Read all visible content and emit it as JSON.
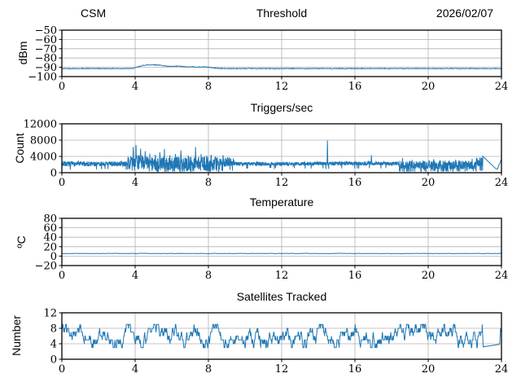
{
  "figure": {
    "background": "#ffffff",
    "line_color": "#1f77b4",
    "grid_color": "#b0b0b0",
    "axis_color": "#000000"
  },
  "chart_data": [
    {
      "type": "line",
      "left_title": "CSM",
      "title": "Threshold",
      "right_title": "2026/02/07",
      "ylabel": "dBm",
      "xlim": [
        0,
        24
      ],
      "ylim": [
        -100,
        -50
      ],
      "xticks": [
        0,
        4,
        8,
        12,
        16,
        20,
        24
      ],
      "yticks": [
        -100,
        -90,
        -80,
        -70,
        -60,
        -50
      ],
      "grid": true,
      "series": [
        {
          "name": "threshold_dbm",
          "mode": "keypoints",
          "seed": 42,
          "step": 0.02,
          "noise": 0.35,
          "points": [
            [
              0,
              -91.4
            ],
            [
              3.8,
              -91.4
            ],
            [
              4.0,
              -90.6
            ],
            [
              4.2,
              -89.3
            ],
            [
              4.45,
              -87.9
            ],
            [
              4.7,
              -87.4
            ],
            [
              5.0,
              -87.3
            ],
            [
              5.3,
              -87.6
            ],
            [
              5.6,
              -88.4
            ],
            [
              5.9,
              -89.2
            ],
            [
              6.15,
              -89.0
            ],
            [
              6.4,
              -88.8
            ],
            [
              6.65,
              -89.3
            ],
            [
              6.9,
              -89.6
            ],
            [
              7.1,
              -89.4
            ],
            [
              7.35,
              -89.9
            ],
            [
              7.6,
              -89.7
            ],
            [
              7.85,
              -89.6
            ],
            [
              8.1,
              -90.2
            ],
            [
              8.35,
              -90.8
            ],
            [
              8.6,
              -91.2
            ],
            [
              9.0,
              -91.4
            ],
            [
              24,
              -91.4
            ]
          ]
        }
      ]
    },
    {
      "type": "line",
      "title": "Triggers/sec",
      "ylabel": "Count",
      "xlim": [
        0,
        24
      ],
      "ylim": [
        0,
        12000
      ],
      "xticks": [
        0,
        4,
        8,
        12,
        16,
        20,
        24
      ],
      "yticks": [
        0,
        4000,
        8000,
        12000
      ],
      "grid": true,
      "series": [
        {
          "name": "triggers_per_sec",
          "mode": "band",
          "seed": 7,
          "step": 0.01,
          "xend": 22.98,
          "segments": [
            {
              "x0": 0,
              "x1": 3.6,
              "lo": 1550,
              "hi": 2750,
              "dip": 0.015,
              "dipLo": 700
            },
            {
              "x0": 3.6,
              "x1": 4.7,
              "lo": 800,
              "hi": 4300,
              "dip": 0.05,
              "dipLo": 250
            },
            {
              "x0": 4.7,
              "x1": 8.6,
              "lo": 500,
              "hi": 3900,
              "dip": 0.07,
              "dipLo": 150
            },
            {
              "x0": 8.6,
              "x1": 9.4,
              "lo": 1500,
              "hi": 3700,
              "dip": 0.03,
              "dipLo": 400
            },
            {
              "x0": 9.4,
              "x1": 13.8,
              "lo": 1700,
              "hi": 2650,
              "dip": 0.01,
              "dipLo": 900
            },
            {
              "x0": 13.8,
              "x1": 18.4,
              "lo": 1800,
              "hi": 2750,
              "dip": 0.01,
              "dipLo": 900
            },
            {
              "x0": 18.4,
              "x1": 22.6,
              "lo": 800,
              "hi": 3000,
              "dip": 0.1,
              "dipLo": 200
            },
            {
              "x0": 22.6,
              "x1": 22.98,
              "lo": 1600,
              "hi": 3900,
              "dip": 0.05,
              "dipLo": 400
            }
          ],
          "spikes": [
            [
              3.9,
              6300
            ],
            [
              4.05,
              6800
            ],
            [
              4.3,
              5900
            ],
            [
              4.55,
              5300
            ],
            [
              4.8,
              4700
            ],
            [
              5.1,
              4400
            ],
            [
              5.35,
              5000
            ],
            [
              5.6,
              5800
            ],
            [
              5.9,
              4300
            ],
            [
              6.2,
              4600
            ],
            [
              6.5,
              5500
            ],
            [
              6.9,
              4200
            ],
            [
              7.3,
              6300
            ],
            [
              7.6,
              4600
            ],
            [
              7.9,
              4200
            ],
            [
              8.15,
              4400
            ],
            [
              8.35,
              3600
            ],
            [
              8.8,
              4300
            ],
            [
              9.05,
              3800
            ],
            [
              14.5,
              7900
            ],
            [
              16.9,
              4300
            ],
            [
              18.6,
              3600
            ],
            [
              20.3,
              3300
            ],
            [
              21.5,
              3200
            ],
            [
              22.4,
              3400
            ]
          ],
          "tail_points": [
            [
              22.98,
              4050
            ],
            [
              23.7,
              950
            ],
            [
              23.78,
              900
            ],
            [
              24,
              3300
            ]
          ]
        }
      ]
    },
    {
      "type": "line",
      "title": "Temperature",
      "ylabel": "ºC",
      "xlim": [
        0,
        24
      ],
      "ylim": [
        -20,
        80
      ],
      "xticks": [
        0,
        4,
        8,
        12,
        16,
        20,
        24
      ],
      "yticks": [
        -20,
        0,
        20,
        40,
        60,
        80
      ],
      "grid": true,
      "series": [
        {
          "name": "temperature_c",
          "mode": "flat",
          "seed": 3,
          "step": 0.05,
          "base": 5.5,
          "noise": 0.5
        }
      ]
    },
    {
      "type": "line",
      "title": "Satellites Tracked",
      "ylabel": "Number",
      "xlim": [
        0,
        24
      ],
      "ylim": [
        0,
        12
      ],
      "xticks": [
        0,
        4,
        8,
        12,
        16,
        20,
        24
      ],
      "yticks": [
        0,
        4,
        8,
        12
      ],
      "grid": true,
      "series": [
        {
          "name": "satellites_tracked",
          "mode": "walk",
          "seed": 99,
          "step": 0.02,
          "xend": 22.95,
          "start": 8,
          "lo": 3,
          "hi": 9,
          "mean": 6,
          "tail_points": [
            [
              22.95,
              9
            ],
            [
              23.0,
              3.2
            ],
            [
              23.85,
              3.8
            ],
            [
              23.9,
              3.9
            ],
            [
              23.95,
              8
            ],
            [
              24,
              7
            ]
          ]
        }
      ]
    }
  ]
}
